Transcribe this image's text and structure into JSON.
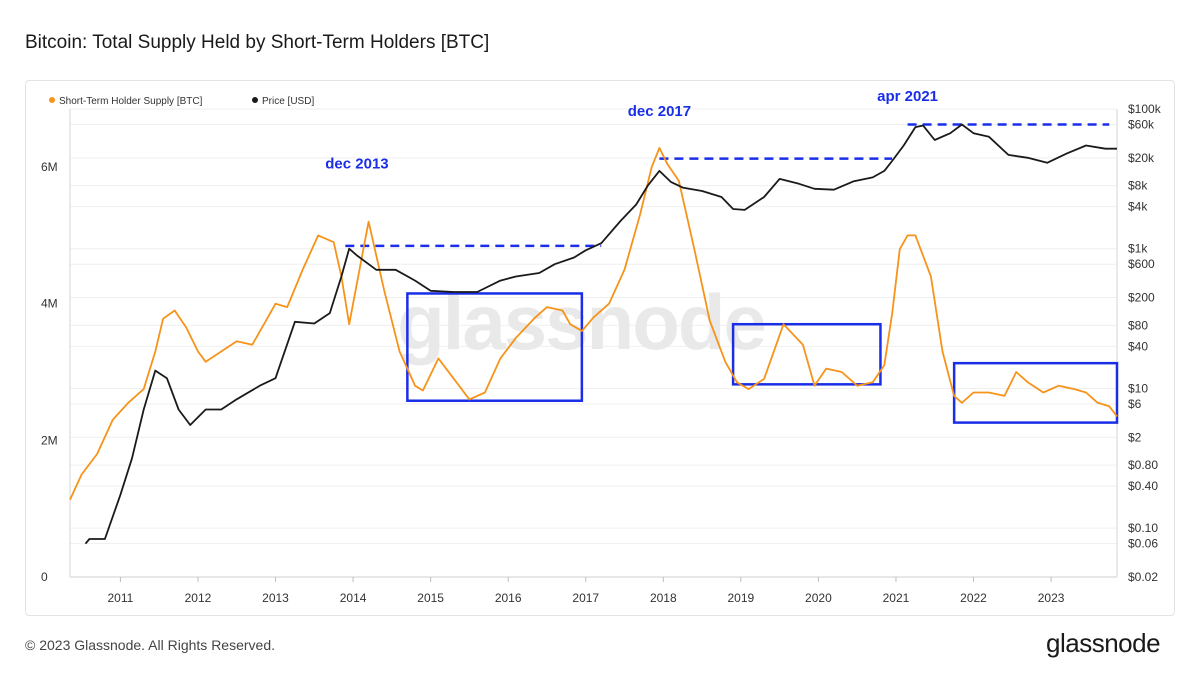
{
  "title": "Bitcoin: Total Supply Held by Short-Term Holders [BTC]",
  "footer": {
    "copyright": "© 2023 Glassnode. All Rights Reserved.",
    "brand": "glassnode"
  },
  "watermark": "glassnode",
  "chart_data": {
    "type": "line",
    "title": "Bitcoin: Total Supply Held by Short-Term Holders [BTC]",
    "x_tick_labels": [
      "2011",
      "2012",
      "2013",
      "2014",
      "2015",
      "2016",
      "2017",
      "2018",
      "2019",
      "2020",
      "2021",
      "2022",
      "2023"
    ],
    "xlim": [
      2010.35,
      2023.85
    ],
    "left_axis": {
      "ylim": [
        0,
        6850000
      ],
      "tick_values": [
        0,
        2000000,
        4000000,
        6000000
      ],
      "tick_labels": [
        "0",
        "2M",
        "4M",
        "6M"
      ]
    },
    "right_axis": {
      "scale": "log",
      "ylim": [
        0.02,
        100000
      ],
      "tick_values": [
        0.02,
        0.06,
        0.1,
        0.4,
        0.8,
        2,
        6,
        10,
        40,
        80,
        200,
        600,
        1000,
        4000,
        8000,
        20000,
        60000,
        100000
      ],
      "tick_labels": [
        "$0.02",
        "$0.06",
        "$0.10",
        "$0.40",
        "$0.80",
        "$2",
        "$6",
        "$10",
        "$40",
        "$80",
        "$200",
        "$600",
        "$1k",
        "$4k",
        "$8k",
        "$20k",
        "$60k",
        "$100k"
      ]
    },
    "grid": true,
    "legend_position": "top-left",
    "series": [
      {
        "name": "Short-Term Holder Supply [BTC]",
        "color": "#f7931a",
        "axis": "left",
        "x": [
          2010.35,
          2010.5,
          2010.7,
          2010.9,
          2011.1,
          2011.3,
          2011.45,
          2011.55,
          2011.7,
          2011.85,
          2012.0,
          2012.1,
          2012.3,
          2012.5,
          2012.7,
          2012.9,
          2013.0,
          2013.15,
          2013.35,
          2013.55,
          2013.75,
          2013.85,
          2013.95,
          2014.1,
          2014.2,
          2014.4,
          2014.6,
          2014.8,
          2014.9,
          2015.1,
          2015.3,
          2015.5,
          2015.7,
          2015.9,
          2016.1,
          2016.35,
          2016.5,
          2016.7,
          2016.8,
          2016.95,
          2017.1,
          2017.3,
          2017.5,
          2017.7,
          2017.85,
          2017.95,
          2018.05,
          2018.2,
          2018.4,
          2018.6,
          2018.8,
          2018.95,
          2019.1,
          2019.3,
          2019.55,
          2019.8,
          2019.95,
          2020.1,
          2020.3,
          2020.5,
          2020.7,
          2020.85,
          2020.95,
          2021.05,
          2021.15,
          2021.25,
          2021.45,
          2021.6,
          2021.75,
          2021.85,
          2022.0,
          2022.2,
          2022.4,
          2022.55,
          2022.7,
          2022.9,
          2023.1,
          2023.3,
          2023.45,
          2023.6,
          2023.75,
          2023.85
        ],
        "values": [
          1130000,
          1500000,
          1800000,
          2300000,
          2550000,
          2750000,
          3300000,
          3780000,
          3900000,
          3650000,
          3300000,
          3150000,
          3300000,
          3450000,
          3400000,
          3800000,
          4000000,
          3950000,
          4500000,
          5000000,
          4900000,
          4400000,
          3700000,
          4600000,
          5200000,
          4200000,
          3300000,
          2800000,
          2730000,
          3200000,
          2900000,
          2600000,
          2700000,
          3200000,
          3500000,
          3800000,
          3950000,
          3900000,
          3700000,
          3600000,
          3800000,
          4000000,
          4500000,
          5300000,
          6000000,
          6280000,
          6050000,
          5800000,
          4800000,
          3750000,
          3150000,
          2850000,
          2750000,
          2900000,
          3700000,
          3400000,
          2800000,
          3050000,
          3000000,
          2800000,
          2850000,
          3100000,
          3850000,
          4800000,
          5000000,
          5000000,
          4400000,
          3300000,
          2650000,
          2550000,
          2700000,
          2700000,
          2650000,
          3000000,
          2850000,
          2700000,
          2800000,
          2750000,
          2700000,
          2550000,
          2500000,
          2350000
        ]
      },
      {
        "name": "Price [USD]",
        "color": "#1a1a1a",
        "axis": "right",
        "x": [
          2010.55,
          2010.6,
          2010.8,
          2011.0,
          2011.15,
          2011.3,
          2011.45,
          2011.6,
          2011.75,
          2011.9,
          2012.1,
          2012.3,
          2012.5,
          2012.8,
          2013.0,
          2013.25,
          2013.5,
          2013.7,
          2013.85,
          2013.95,
          2014.05,
          2014.3,
          2014.55,
          2014.8,
          2015.0,
          2015.3,
          2015.6,
          2015.9,
          2016.1,
          2016.4,
          2016.6,
          2016.85,
          2017.0,
          2017.2,
          2017.45,
          2017.65,
          2017.8,
          2017.95,
          2018.1,
          2018.25,
          2018.5,
          2018.75,
          2018.9,
          2019.05,
          2019.3,
          2019.5,
          2019.75,
          2019.95,
          2020.2,
          2020.45,
          2020.7,
          2020.85,
          2020.95,
          2021.1,
          2021.25,
          2021.35,
          2021.5,
          2021.7,
          2021.85,
          2022.0,
          2022.2,
          2022.45,
          2022.7,
          2022.95,
          2023.2,
          2023.45,
          2023.7,
          2023.85
        ],
        "values": [
          0.06,
          0.07,
          0.07,
          0.3,
          1.0,
          5.0,
          18,
          14,
          5,
          3,
          5,
          5,
          7,
          11,
          14,
          90,
          85,
          120,
          400,
          1000,
          800,
          500,
          500,
          350,
          250,
          240,
          240,
          350,
          400,
          450,
          600,
          750,
          950,
          1200,
          2500,
          4300,
          8000,
          13000,
          9000,
          7500,
          6700,
          5500,
          3700,
          3600,
          5500,
          10000,
          8500,
          7200,
          7000,
          9200,
          10500,
          13000,
          18000,
          30000,
          55000,
          58000,
          36000,
          45000,
          60000,
          45000,
          40000,
          22000,
          20000,
          17000,
          23000,
          30000,
          27000,
          27000
        ]
      }
    ],
    "annotations": [
      {
        "text": "dec 2013",
        "x": 2014.05,
        "y_price": 14000
      },
      {
        "text": "dec 2017",
        "x": 2017.95,
        "y_price": 80000
      },
      {
        "text": "apr 2021",
        "x": 2021.15,
        "y_price": 130000
      }
    ],
    "reference_lines": [
      {
        "x_start": 2013.9,
        "x_end": 2017.2,
        "y_price": 1100
      },
      {
        "x_start": 2017.95,
        "x_end": 2020.95,
        "y_price": 19500
      },
      {
        "x_start": 2021.15,
        "x_end": 2023.75,
        "y_price": 60000
      }
    ],
    "highlight_boxes": [
      {
        "x_start": 2014.7,
        "x_end": 2016.95,
        "y_min": 2580000,
        "y_max": 4150000
      },
      {
        "x_start": 2018.9,
        "x_end": 2020.8,
        "y_min": 2820000,
        "y_max": 3700000
      },
      {
        "x_start": 2021.75,
        "x_end": 2023.85,
        "y_min": 2260000,
        "y_max": 3130000
      }
    ]
  }
}
